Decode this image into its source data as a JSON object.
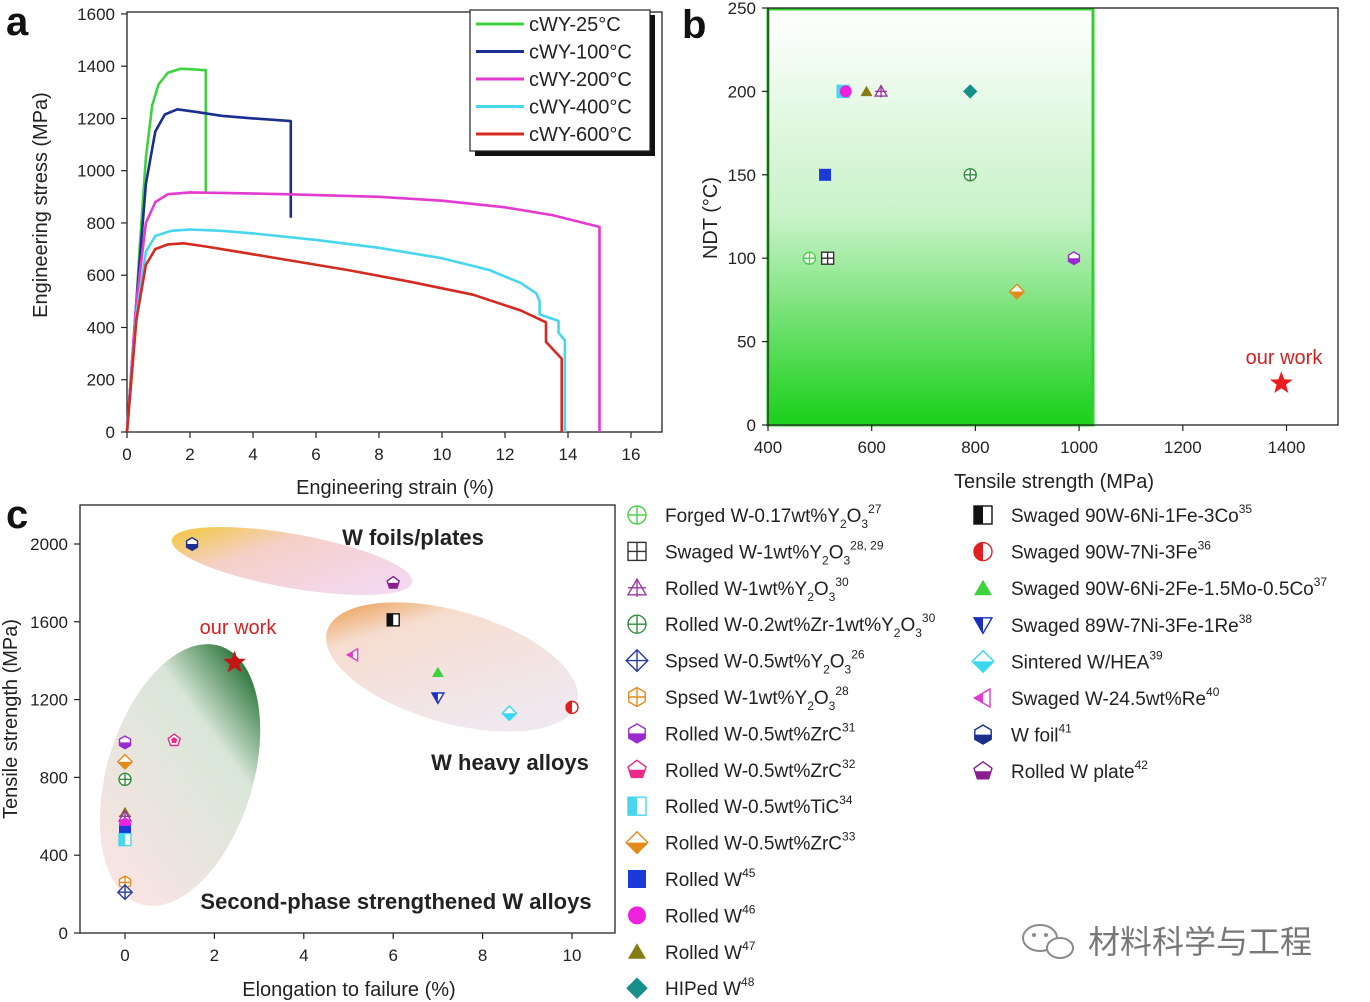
{
  "chart_data": [
    {
      "id": "a",
      "type": "line",
      "panel_label": "a",
      "xlabel": "Engineering strain (%)",
      "ylabel": "Engineering stress (MPa)",
      "xlim": [
        0,
        17
      ],
      "ylim": [
        0,
        1600
      ],
      "xticks": [
        0,
        2,
        4,
        6,
        8,
        10,
        12,
        14,
        16
      ],
      "yticks": [
        0,
        200,
        400,
        600,
        800,
        1000,
        1200,
        1400,
        1600
      ],
      "legend_position": "top-right",
      "series": [
        {
          "name": "cWY-25°C",
          "color": "#3fd23f",
          "points": [
            [
              0,
              0
            ],
            [
              0.2,
              300
            ],
            [
              0.4,
              700
            ],
            [
              0.6,
              1050
            ],
            [
              0.8,
              1250
            ],
            [
              1.0,
              1330
            ],
            [
              1.3,
              1375
            ],
            [
              1.7,
              1390
            ],
            [
              2.1,
              1388
            ],
            [
              2.4,
              1385
            ],
            [
              2.5,
              1385
            ],
            [
              2.5,
              920
            ]
          ]
        },
        {
          "name": "cWY-100°C",
          "color": "#1a2f8f",
          "points": [
            [
              0,
              0
            ],
            [
              0.3,
              500
            ],
            [
              0.6,
              950
            ],
            [
              0.9,
              1150
            ],
            [
              1.2,
              1215
            ],
            [
              1.6,
              1235
            ],
            [
              2.2,
              1225
            ],
            [
              3,
              1210
            ],
            [
              4,
              1200
            ],
            [
              5.2,
              1190
            ],
            [
              5.2,
              820
            ]
          ]
        },
        {
          "name": "cWY-200°C",
          "color": "#e33ad0",
          "points": [
            [
              0,
              0
            ],
            [
              0.3,
              500
            ],
            [
              0.6,
              800
            ],
            [
              0.9,
              880
            ],
            [
              1.3,
              910
            ],
            [
              2,
              917
            ],
            [
              3,
              915
            ],
            [
              5,
              910
            ],
            [
              8,
              900
            ],
            [
              10,
              885
            ],
            [
              12,
              860
            ],
            [
              13.5,
              830
            ],
            [
              14.5,
              800
            ],
            [
              15,
              785
            ],
            [
              15,
              0
            ]
          ]
        },
        {
          "name": "cWY-400°C",
          "color": "#48d6ee",
          "points": [
            [
              0,
              0
            ],
            [
              0.3,
              450
            ],
            [
              0.6,
              690
            ],
            [
              0.9,
              750
            ],
            [
              1.4,
              770
            ],
            [
              2,
              775
            ],
            [
              3,
              770
            ],
            [
              4,
              760
            ],
            [
              6,
              735
            ],
            [
              8,
              705
            ],
            [
              10,
              665
            ],
            [
              11.5,
              620
            ],
            [
              12.5,
              570
            ],
            [
              13,
              530
            ],
            [
              13.1,
              500
            ],
            [
              13.1,
              450
            ],
            [
              13.7,
              425
            ],
            [
              13.7,
              380
            ],
            [
              13.9,
              350
            ],
            [
              13.9,
              0
            ]
          ]
        },
        {
          "name": "cWY-600°C",
          "color": "#d42a20",
          "points": [
            [
              0,
              0
            ],
            [
              0.3,
              430
            ],
            [
              0.6,
              640
            ],
            [
              0.9,
              700
            ],
            [
              1.3,
              718
            ],
            [
              1.8,
              722
            ],
            [
              2.5,
              710
            ],
            [
              3.5,
              690
            ],
            [
              5,
              660
            ],
            [
              7,
              620
            ],
            [
              9,
              575
            ],
            [
              11,
              525
            ],
            [
              12.5,
              465
            ],
            [
              13.3,
              420
            ],
            [
              13.3,
              345
            ],
            [
              13.8,
              280
            ],
            [
              13.8,
              0
            ]
          ]
        }
      ]
    },
    {
      "id": "b",
      "type": "scatter",
      "panel_label": "b",
      "xlabel": "Tensile strength (MPa)",
      "ylabel": "NDT (°C)",
      "xlim": [
        400,
        1500
      ],
      "ylim": [
        0,
        250
      ],
      "xticks": [
        400,
        600,
        800,
        1000,
        1200,
        1400
      ],
      "yticks": [
        0,
        50,
        100,
        150,
        200,
        250
      ],
      "highlight_region": {
        "x": [
          400,
          1030
        ],
        "y": [
          0,
          250
        ],
        "color": "#2fd02f"
      },
      "annotation": "our work",
      "points": [
        {
          "x": 545,
          "y": 200,
          "marker": "square-half",
          "color": "#48d6ee"
        },
        {
          "x": 550,
          "y": 200,
          "marker": "circle",
          "color": "#ee22dd"
        },
        {
          "x": 590,
          "y": 200,
          "marker": "triangle",
          "color": "#857d10"
        },
        {
          "x": 618,
          "y": 200,
          "marker": "triangle-cross",
          "color": "#9a3aa0"
        },
        {
          "x": 790,
          "y": 200,
          "marker": "diamond",
          "color": "#178f8a"
        },
        {
          "x": 510,
          "y": 150,
          "marker": "square",
          "color": "#1a3bd8"
        },
        {
          "x": 790,
          "y": 150,
          "marker": "circle-cross",
          "color": "#2f8f3a"
        },
        {
          "x": 480,
          "y": 100,
          "marker": "circle-cross",
          "color": "#4ad04a"
        },
        {
          "x": 515,
          "y": 100,
          "marker": "square-grid",
          "color": "#333333"
        },
        {
          "x": 990,
          "y": 100,
          "marker": "hexagon-half",
          "color": "#9a2ad0"
        },
        {
          "x": 880,
          "y": 80,
          "marker": "diamond-half",
          "color": "#e38a1a"
        },
        {
          "x": 1390,
          "y": 25,
          "marker": "star",
          "color": "#ee1c1c"
        }
      ]
    },
    {
      "id": "c",
      "type": "scatter",
      "panel_label": "c",
      "xlabel": "Elongation to failure (%)",
      "ylabel": "Tensile strength (MPa)",
      "xlim": [
        -1,
        11.5
      ],
      "ylim": [
        0,
        2200
      ],
      "xticks": [
        0,
        2,
        4,
        6,
        8,
        10
      ],
      "yticks": [
        0,
        400,
        800,
        1200,
        1600,
        2000
      ],
      "group_labels": [
        "W foils/plates",
        "W heavy alloys",
        "Second-phase strengthened W alloys"
      ],
      "annotation": "our work",
      "points": [
        {
          "x": 1.5,
          "y": 2000,
          "marker": "hexagon-half",
          "color": "#1a2f8f"
        },
        {
          "x": 6.0,
          "y": 1800,
          "marker": "pentagon-half",
          "color": "#8a1f8f"
        },
        {
          "x": 6.0,
          "y": 1610,
          "marker": "square-half",
          "color": "#111111"
        },
        {
          "x": 5.1,
          "y": 1430,
          "marker": "tri-left",
          "color": "#e03ad0"
        },
        {
          "x": 7.0,
          "y": 1340,
          "marker": "triangle",
          "color": "#3fd23f"
        },
        {
          "x": 7.0,
          "y": 1210,
          "marker": "tri-down",
          "color": "#1a2fc0"
        },
        {
          "x": 8.6,
          "y": 1130,
          "marker": "diamond-half",
          "color": "#38d8ee"
        },
        {
          "x": 10.0,
          "y": 1160,
          "marker": "circle-half",
          "color": "#e02020"
        },
        {
          "x": 2.45,
          "y": 1390,
          "marker": "star",
          "color": "#c41414"
        },
        {
          "x": 1.1,
          "y": 990,
          "marker": "pentagon",
          "color": "#ee2a88"
        },
        {
          "x": 0,
          "y": 980,
          "marker": "hexagon-half",
          "color": "#9a2ad0"
        },
        {
          "x": 0,
          "y": 880,
          "marker": "diamond-half",
          "color": "#e38a1a"
        },
        {
          "x": 0,
          "y": 790,
          "marker": "circle-cross",
          "color": "#2f8f3a"
        },
        {
          "x": 0,
          "y": 620,
          "marker": "triangle",
          "color": "#857d10"
        },
        {
          "x": 0,
          "y": 600,
          "marker": "triangle-cross",
          "color": "#9a3aa0"
        },
        {
          "x": 0,
          "y": 560,
          "marker": "circle",
          "color": "#ee22dd"
        },
        {
          "x": 0,
          "y": 520,
          "marker": "square",
          "color": "#1a3bd8"
        },
        {
          "x": 0,
          "y": 480,
          "marker": "square-half",
          "color": "#48d6ee"
        },
        {
          "x": 0,
          "y": 260,
          "marker": "hex-cross",
          "color": "#e38a1a"
        },
        {
          "x": 0,
          "y": 210,
          "marker": "diamond-cross",
          "color": "#2a3aa0"
        }
      ]
    }
  ],
  "legend_c": {
    "left": [
      {
        "marker": "circle-cross",
        "color": "#4ad04a",
        "base": "Forged W-0.17wt%Y",
        "sub": "2",
        "mid": "O",
        "sub2": "3",
        "ref": "27"
      },
      {
        "marker": "square-grid",
        "color": "#333333",
        "base": "Swaged W-1wt%Y",
        "sub": "2",
        "mid": "O",
        "sub2": "3",
        "ref": "28, 29"
      },
      {
        "marker": "triangle-cross",
        "color": "#9a3aa0",
        "base": "Rolled W-1wt%Y",
        "sub": "2",
        "mid": "O",
        "sub2": "3",
        "ref": "30"
      },
      {
        "marker": "circle-cross",
        "color": "#2f8f3a",
        "base": "Rolled W-0.2wt%Zr-1wt%Y",
        "sub": "2",
        "mid": "O",
        "sub2": "3",
        "ref": "30"
      },
      {
        "marker": "diamond-cross",
        "color": "#2a3aa0",
        "base": "Spsed W-0.5wt%Y",
        "sub": "2",
        "mid": "O",
        "sub2": "3",
        "ref": "26"
      },
      {
        "marker": "hex-cross",
        "color": "#e38a1a",
        "base": "Spsed W-1wt%Y",
        "sub": "2",
        "mid": "O",
        "sub2": "3",
        "ref": "28"
      },
      {
        "marker": "hexagon-half",
        "color": "#9a2ad0",
        "base": "Rolled W-0.5wt%ZrC",
        "ref": "31"
      },
      {
        "marker": "pentagon-half",
        "color": "#ee2a88",
        "base": "Rolled W-0.5wt%ZrC",
        "ref": "32"
      },
      {
        "marker": "square-half",
        "color": "#48d6ee",
        "base": "Rolled W-0.5wt%TiC",
        "ref": "34"
      },
      {
        "marker": "diamond-half",
        "color": "#e38a1a",
        "base": "Rolled W-0.5wt%ZrC",
        "ref": "33"
      },
      {
        "marker": "square",
        "color": "#1a3bd8",
        "base": "Rolled W",
        "ref": "45"
      },
      {
        "marker": "circle",
        "color": "#ee22dd",
        "base": "Rolled W",
        "ref": "46"
      },
      {
        "marker": "triangle",
        "color": "#857d10",
        "base": "Rolled W",
        "ref": "47"
      },
      {
        "marker": "diamond",
        "color": "#178f8a",
        "base": "HIPed W",
        "ref": "48"
      }
    ],
    "right": [
      {
        "marker": "square-half",
        "color": "#111111",
        "base": "Swaged 90W-6Ni-1Fe-3Co",
        "ref": "35"
      },
      {
        "marker": "circle-half",
        "color": "#e02020",
        "base": "Swaged 90W-7Ni-3Fe",
        "ref": "36"
      },
      {
        "marker": "triangle",
        "color": "#3fd23f",
        "base": "Swaged 90W-6Ni-2Fe-1.5Mo-0.5Co",
        "ref": "37"
      },
      {
        "marker": "tri-down",
        "color": "#1a2fc0",
        "base": "Swaged 89W-7Ni-3Fe-1Re",
        "ref": "38"
      },
      {
        "marker": "diamond-half",
        "color": "#38d8ee",
        "base": "Sintered W/HEA",
        "ref": "39"
      },
      {
        "marker": "tri-left",
        "color": "#e03ad0",
        "base": "Swaged W-24.5wt%Re",
        "ref": "40"
      },
      {
        "marker": "hexagon-half",
        "color": "#1a2f8f",
        "base": "W foil",
        "ref": "41"
      },
      {
        "marker": "pentagon-half",
        "color": "#8a1f8f",
        "base": "Rolled W plate",
        "ref": "42"
      }
    ]
  },
  "watermark": "材料科学与工程"
}
